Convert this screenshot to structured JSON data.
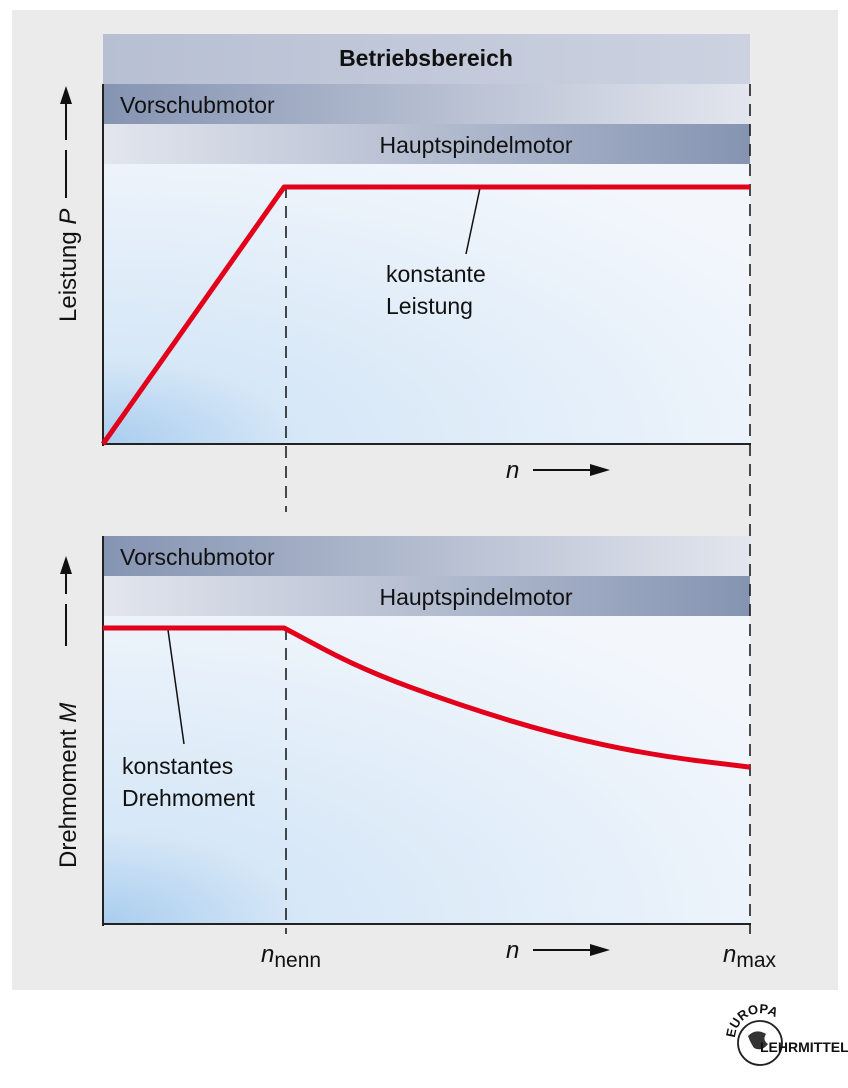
{
  "header": {
    "title": "Betriebsbereich"
  },
  "bands": {
    "vorschub": "Vorschubmotor",
    "hauptspindel": "Hauptspindelmotor"
  },
  "axes": {
    "top_ylabel_text": "Leistung",
    "top_ylabel_symbol": "P",
    "bottom_ylabel_text": "Drehmoment",
    "bottom_ylabel_symbol": "M",
    "x_symbol": "n",
    "n_nenn_base": "n",
    "n_nenn_sub": "nenn",
    "n_max_base": "n",
    "n_max_sub": "max"
  },
  "annotations": {
    "power_line1": "konstante",
    "power_line2": "Leistung",
    "torque_line1": "konstantes",
    "torque_line2": "Drehmoment"
  },
  "logo": {
    "line1": "EUROPA",
    "line2": "LEHRMITTEL"
  },
  "colors": {
    "curve": "#e2001a",
    "band_dark": "#8594b2",
    "band_light": "#d9dde8",
    "plot_blue": "#cfe2f4"
  },
  "chart_data": [
    {
      "type": "line",
      "name": "power",
      "x_range": [
        0,
        1
      ],
      "y_range": [
        0,
        1
      ],
      "x_nenn": 0.28,
      "x": [
        0,
        0.28,
        1
      ],
      "y": [
        0,
        1,
        1
      ]
    },
    {
      "type": "line",
      "name": "torque",
      "x_range": [
        0,
        1
      ],
      "y_range": [
        0,
        1
      ],
      "x_nenn": 0.28,
      "x": [
        0,
        0.28,
        0.4,
        0.55,
        0.7,
        0.85,
        1
      ],
      "y": [
        1,
        1,
        0.86,
        0.74,
        0.64,
        0.57,
        0.53
      ]
    }
  ]
}
